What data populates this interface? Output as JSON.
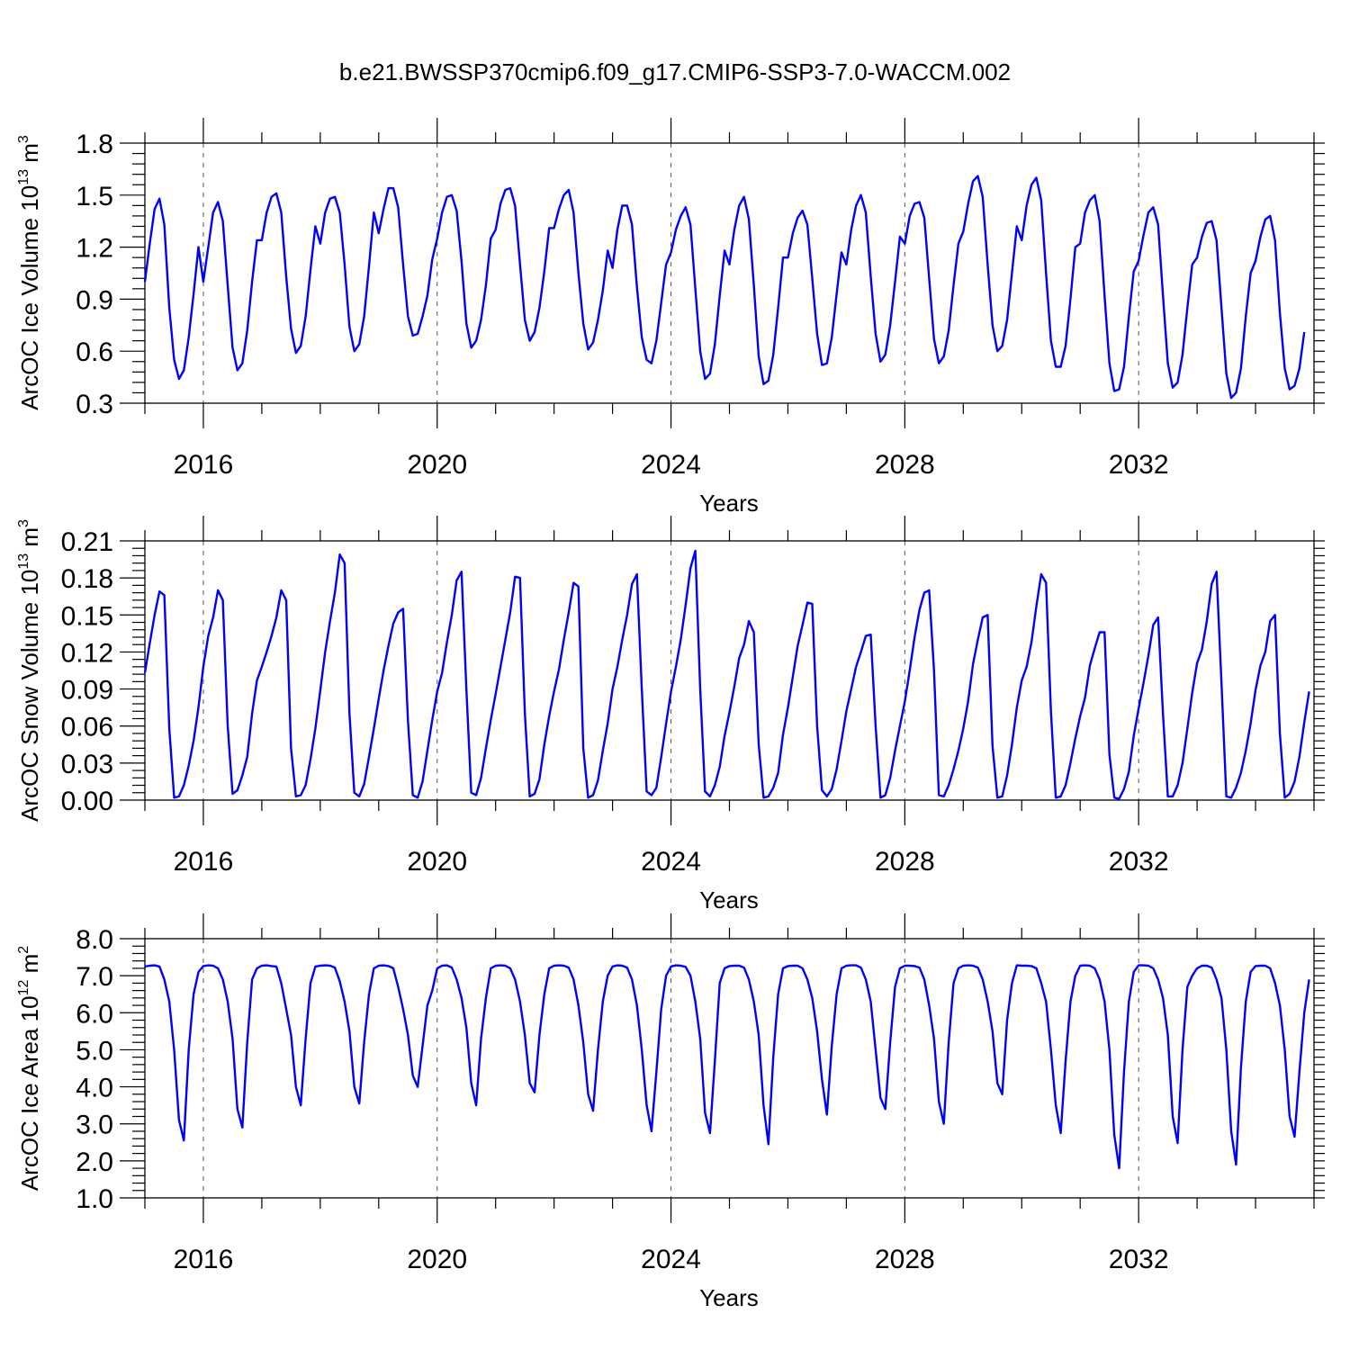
{
  "title": "b.e21.BWSSP370cmip6.f09_g17.CMIP6-SSP3-7.0-WACCM.002",
  "colors": {
    "series": "#0000ff",
    "axis": "#000000",
    "grid": "#555555"
  },
  "chart_data": [
    {
      "type": "line",
      "ylabel": {
        "prefix": "ArcOC Ice Volume 10",
        "exp": "13",
        "unit": " m",
        "unit_exp": "3"
      },
      "xlabel": "Years",
      "xlim": [
        2015,
        2035
      ],
      "ylim": [
        0.3,
        1.8
      ],
      "yticks": [
        "0.3",
        "0.6",
        "0.9",
        "1.2",
        "1.5",
        "1.8"
      ],
      "xticks": [
        "2016",
        "2020",
        "2024",
        "2028",
        "2032"
      ],
      "series": [
        {
          "name": "ArcOC Ice Volume",
          "values": [
            1.0,
            1.22,
            1.42,
            1.48,
            1.33,
            0.85,
            0.55,
            0.44,
            0.49,
            0.68,
            0.93,
            1.2,
            1.0,
            1.2,
            1.4,
            1.46,
            1.35,
            0.98,
            0.62,
            0.49,
            0.53,
            0.72,
            1.0,
            1.24,
            1.24,
            1.4,
            1.49,
            1.51,
            1.4,
            1.03,
            0.73,
            0.59,
            0.63,
            0.8,
            1.07,
            1.32,
            1.22,
            1.4,
            1.48,
            1.49,
            1.4,
            1.1,
            0.74,
            0.6,
            0.64,
            0.8,
            1.09,
            1.4,
            1.28,
            1.42,
            1.54,
            1.54,
            1.43,
            1.1,
            0.8,
            0.69,
            0.7,
            0.8,
            0.92,
            1.13,
            1.25,
            1.4,
            1.49,
            1.5,
            1.41,
            1.12,
            0.76,
            0.62,
            0.66,
            0.78,
            0.98,
            1.25,
            1.3,
            1.45,
            1.53,
            1.54,
            1.44,
            1.1,
            0.78,
            0.66,
            0.71,
            0.85,
            1.06,
            1.31,
            1.31,
            1.42,
            1.5,
            1.53,
            1.4,
            1.05,
            0.76,
            0.61,
            0.65,
            0.78,
            0.95,
            1.18,
            1.08,
            1.3,
            1.44,
            1.44,
            1.33,
            0.97,
            0.68,
            0.55,
            0.53,
            0.66,
            0.88,
            1.1,
            1.17,
            1.3,
            1.38,
            1.43,
            1.33,
            0.96,
            0.6,
            0.44,
            0.47,
            0.64,
            0.92,
            1.18,
            1.1,
            1.3,
            1.44,
            1.49,
            1.36,
            0.98,
            0.57,
            0.41,
            0.43,
            0.58,
            0.85,
            1.14,
            1.14,
            1.28,
            1.37,
            1.41,
            1.33,
            1.02,
            0.7,
            0.52,
            0.53,
            0.68,
            0.93,
            1.17,
            1.1,
            1.3,
            1.44,
            1.5,
            1.4,
            1.03,
            0.7,
            0.54,
            0.58,
            0.75,
            1.0,
            1.26,
            1.22,
            1.38,
            1.45,
            1.46,
            1.37,
            1.02,
            0.67,
            0.53,
            0.57,
            0.72,
            0.98,
            1.22,
            1.29,
            1.45,
            1.58,
            1.61,
            1.49,
            1.1,
            0.75,
            0.6,
            0.63,
            0.78,
            1.05,
            1.32,
            1.24,
            1.44,
            1.56,
            1.6,
            1.47,
            1.05,
            0.66,
            0.51,
            0.51,
            0.63,
            0.9,
            1.2,
            1.22,
            1.4,
            1.47,
            1.5,
            1.35,
            0.92,
            0.53,
            0.37,
            0.38,
            0.51,
            0.8,
            1.06,
            1.12,
            1.27,
            1.4,
            1.43,
            1.33,
            0.92,
            0.53,
            0.39,
            0.42,
            0.58,
            0.85,
            1.1,
            1.14,
            1.26,
            1.34,
            1.35,
            1.24,
            0.85,
            0.47,
            0.33,
            0.36,
            0.5,
            0.8,
            1.05,
            1.12,
            1.26,
            1.36,
            1.38,
            1.24,
            0.82,
            0.5,
            0.38,
            0.4,
            0.5,
            0.71
          ]
        }
      ]
    },
    {
      "type": "line",
      "ylabel": {
        "prefix": "ArcOC Snow Volume 10",
        "exp": "13",
        "unit": " m",
        "unit_exp": "3"
      },
      "xlabel": "Years",
      "xlim": [
        2015,
        2035
      ],
      "ylim": [
        0.0,
        0.21
      ],
      "yticks": [
        "0.00",
        "0.03",
        "0.06",
        "0.09",
        "0.12",
        "0.15",
        "0.18",
        "0.21"
      ],
      "xticks": [
        "2016",
        "2020",
        "2024",
        "2028",
        "2032"
      ],
      "series": [
        {
          "name": "ArcOC Snow Volume",
          "values": [
            0.103,
            0.127,
            0.15,
            0.169,
            0.166,
            0.058,
            0.002,
            0.003,
            0.012,
            0.028,
            0.048,
            0.075,
            0.108,
            0.133,
            0.148,
            0.17,
            0.162,
            0.06,
            0.005,
            0.008,
            0.02,
            0.035,
            0.07,
            0.097,
            0.108,
            0.12,
            0.133,
            0.148,
            0.17,
            0.162,
            0.042,
            0.003,
            0.004,
            0.012,
            0.033,
            0.058,
            0.089,
            0.12,
            0.145,
            0.168,
            0.199,
            0.192,
            0.07,
            0.006,
            0.003,
            0.013,
            0.035,
            0.058,
            0.082,
            0.105,
            0.125,
            0.143,
            0.152,
            0.155,
            0.064,
            0.004,
            0.002,
            0.015,
            0.04,
            0.065,
            0.088,
            0.103,
            0.128,
            0.15,
            0.178,
            0.185,
            0.09,
            0.006,
            0.004,
            0.018,
            0.042,
            0.065,
            0.086,
            0.108,
            0.13,
            0.152,
            0.181,
            0.18,
            0.07,
            0.003,
            0.005,
            0.017,
            0.045,
            0.068,
            0.088,
            0.106,
            0.13,
            0.152,
            0.176,
            0.173,
            0.042,
            0.002,
            0.004,
            0.016,
            0.04,
            0.062,
            0.09,
            0.108,
            0.13,
            0.15,
            0.175,
            0.183,
            0.09,
            0.007,
            0.004,
            0.01,
            0.035,
            0.062,
            0.088,
            0.108,
            0.13,
            0.158,
            0.188,
            0.202,
            0.09,
            0.007,
            0.003,
            0.012,
            0.027,
            0.052,
            0.071,
            0.092,
            0.115,
            0.126,
            0.145,
            0.136,
            0.045,
            0.002,
            0.003,
            0.01,
            0.022,
            0.053,
            0.075,
            0.1,
            0.125,
            0.142,
            0.16,
            0.159,
            0.06,
            0.008,
            0.003,
            0.009,
            0.025,
            0.048,
            0.072,
            0.09,
            0.108,
            0.12,
            0.133,
            0.134,
            0.06,
            0.002,
            0.004,
            0.018,
            0.04,
            0.06,
            0.08,
            0.105,
            0.132,
            0.154,
            0.168,
            0.17,
            0.105,
            0.004,
            0.003,
            0.012,
            0.025,
            0.04,
            0.058,
            0.08,
            0.11,
            0.13,
            0.148,
            0.15,
            0.044,
            0.002,
            0.003,
            0.02,
            0.045,
            0.075,
            0.097,
            0.108,
            0.128,
            0.157,
            0.183,
            0.176,
            0.072,
            0.002,
            0.003,
            0.012,
            0.03,
            0.05,
            0.068,
            0.083,
            0.109,
            0.123,
            0.136,
            0.136,
            0.037,
            0.002,
            0.001,
            0.009,
            0.023,
            0.052,
            0.074,
            0.095,
            0.117,
            0.142,
            0.148,
            0.07,
            0.003,
            0.003,
            0.012,
            0.03,
            0.058,
            0.087,
            0.111,
            0.122,
            0.145,
            0.175,
            0.185,
            0.095,
            0.003,
            0.002,
            0.01,
            0.022,
            0.04,
            0.062,
            0.089,
            0.109,
            0.12,
            0.145,
            0.15,
            0.054,
            0.002,
            0.005,
            0.015,
            0.035,
            0.063,
            0.088
          ]
        }
      ]
    },
    {
      "type": "line",
      "ylabel": {
        "prefix": "ArcOC Ice Area 10",
        "exp": "12",
        "unit": " m",
        "unit_exp": "2"
      },
      "xlabel": "Years",
      "xlim": [
        2015,
        2035
      ],
      "ylim": [
        1.0,
        8.0
      ],
      "yticks": [
        "1.0",
        "2.0",
        "3.0",
        "4.0",
        "5.0",
        "6.0",
        "7.0",
        "8.0"
      ],
      "xticks": [
        "2016",
        "2020",
        "2024",
        "2028",
        "2032"
      ],
      "series": [
        {
          "name": "ArcOC Ice Area",
          "values": [
            7.25,
            7.27,
            7.28,
            7.25,
            6.9,
            6.3,
            5.0,
            3.1,
            2.55,
            5.0,
            6.5,
            7.1,
            7.26,
            7.28,
            7.27,
            7.2,
            6.9,
            6.3,
            5.3,
            3.4,
            2.9,
            5.2,
            6.9,
            7.2,
            7.27,
            7.28,
            7.26,
            7.25,
            6.8,
            6.1,
            5.4,
            4.0,
            3.5,
            5.3,
            6.8,
            7.25,
            7.27,
            7.28,
            7.27,
            7.22,
            6.85,
            6.3,
            5.5,
            4.0,
            3.55,
            5.2,
            6.5,
            7.2,
            7.27,
            7.28,
            7.26,
            7.2,
            6.7,
            6.1,
            5.4,
            4.3,
            4.0,
            5.1,
            6.2,
            6.6,
            7.2,
            7.27,
            7.28,
            7.22,
            6.9,
            6.4,
            5.6,
            4.1,
            3.5,
            5.3,
            6.4,
            7.2,
            7.27,
            7.28,
            7.27,
            7.2,
            6.9,
            6.3,
            5.4,
            4.1,
            3.85,
            5.4,
            6.5,
            7.2,
            7.27,
            7.28,
            7.27,
            7.22,
            6.9,
            6.2,
            5.2,
            3.8,
            3.35,
            5.0,
            6.3,
            7.0,
            7.25,
            7.28,
            7.27,
            7.22,
            6.9,
            6.2,
            5.0,
            3.5,
            2.8,
            4.4,
            6.1,
            7.0,
            7.25,
            7.28,
            7.27,
            7.24,
            7.0,
            6.3,
            5.3,
            3.3,
            2.75,
            4.7,
            6.8,
            7.2,
            7.26,
            7.27,
            7.27,
            7.22,
            6.9,
            6.3,
            5.4,
            3.5,
            2.45,
            4.8,
            6.5,
            7.2,
            7.26,
            7.27,
            7.27,
            7.2,
            6.9,
            6.4,
            5.5,
            4.2,
            3.25,
            5.1,
            6.5,
            7.2,
            7.27,
            7.28,
            7.28,
            7.22,
            6.9,
            6.3,
            5.0,
            3.7,
            3.4,
            5.2,
            6.7,
            7.2,
            7.27,
            7.27,
            7.26,
            7.22,
            6.9,
            6.2,
            5.3,
            3.6,
            3.0,
            5.2,
            6.8,
            7.2,
            7.27,
            7.28,
            7.27,
            7.22,
            6.9,
            6.3,
            5.5,
            4.1,
            3.8,
            5.8,
            6.8,
            7.28,
            7.27,
            7.27,
            7.26,
            7.2,
            6.8,
            6.3,
            5.0,
            3.5,
            2.75,
            4.7,
            6.3,
            7.0,
            7.27,
            7.28,
            7.27,
            7.2,
            6.9,
            6.3,
            5.0,
            2.7,
            1.8,
            4.4,
            6.3,
            7.1,
            7.28,
            7.28,
            7.27,
            7.2,
            6.9,
            6.4,
            5.4,
            3.2,
            2.48,
            5.0,
            6.7,
            7.0,
            7.2,
            7.27,
            7.27,
            7.22,
            6.9,
            6.4,
            5.0,
            2.8,
            1.9,
            4.5,
            6.3,
            7.1,
            7.26,
            7.27,
            7.27,
            7.2,
            6.8,
            6.2,
            5.0,
            3.2,
            2.65,
            4.4,
            6.0,
            6.9
          ]
        }
      ]
    }
  ]
}
